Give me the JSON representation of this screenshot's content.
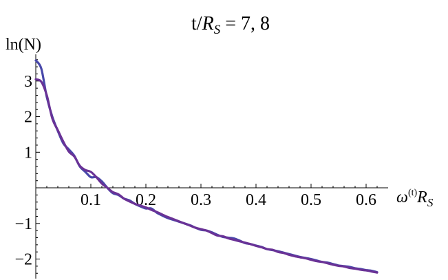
{
  "chart_data": {
    "type": "line",
    "title": {
      "prefix": "t/",
      "var": "R",
      "sub": "S",
      "suffix": " = 7, 8"
    },
    "ylabel": "ln(N)",
    "xlabel": {
      "var": "ω",
      "sup": "(t)",
      "var2": "R",
      "sub": "S"
    },
    "xlim": [
      0,
      0.64
    ],
    "ylim": [
      -2.55,
      3.75
    ],
    "x_ticks": [
      {
        "value": 0.1,
        "label": "0.1"
      },
      {
        "value": 0.2,
        "label": "0.2"
      },
      {
        "value": 0.3,
        "label": "0.3"
      },
      {
        "value": 0.4,
        "label": "0.4"
      },
      {
        "value": 0.5,
        "label": "0.5"
      },
      {
        "value": 0.6,
        "label": "0.6"
      }
    ],
    "y_ticks": [
      {
        "value": -2,
        "label": "−2"
      },
      {
        "value": -1,
        "label": "−1"
      },
      {
        "value": 1,
        "label": "1"
      },
      {
        "value": 2,
        "label": "2"
      },
      {
        "value": 3,
        "label": "3"
      }
    ],
    "series": [
      {
        "color": "#4848aa",
        "x": [
          0.0,
          0.01,
          0.02,
          0.03,
          0.04,
          0.05,
          0.06,
          0.07,
          0.08,
          0.09,
          0.1,
          0.11,
          0.12,
          0.13,
          0.14,
          0.15,
          0.16,
          0.17,
          0.18,
          0.19,
          0.2,
          0.21,
          0.22,
          0.23,
          0.24,
          0.25,
          0.26,
          0.27,
          0.28,
          0.29,
          0.3,
          0.31,
          0.32,
          0.33,
          0.34,
          0.35,
          0.36,
          0.37,
          0.38,
          0.39,
          0.4,
          0.41,
          0.42,
          0.43,
          0.44,
          0.45,
          0.46,
          0.47,
          0.48,
          0.49,
          0.5,
          0.51,
          0.52,
          0.53,
          0.54,
          0.55,
          0.56,
          0.57,
          0.58,
          0.59,
          0.6,
          0.61,
          0.62
        ],
        "y": [
          3.58,
          3.35,
          2.55,
          2.0,
          1.6,
          1.25,
          1.08,
          0.9,
          0.6,
          0.45,
          0.3,
          0.3,
          0.18,
          0.0,
          -0.15,
          -0.2,
          -0.3,
          -0.35,
          -0.45,
          -0.52,
          -0.58,
          -0.58,
          -0.7,
          -0.78,
          -0.85,
          -0.9,
          -0.95,
          -1.0,
          -1.05,
          -1.12,
          -1.18,
          -1.2,
          -1.25,
          -1.32,
          -1.38,
          -1.4,
          -1.42,
          -1.48,
          -1.55,
          -1.58,
          -1.62,
          -1.66,
          -1.72,
          -1.75,
          -1.78,
          -1.82,
          -1.86,
          -1.9,
          -1.94,
          -1.97,
          -2.0,
          -2.04,
          -2.08,
          -2.1,
          -2.14,
          -2.18,
          -2.2,
          -2.22,
          -2.26,
          -2.28,
          -2.31,
          -2.33,
          -2.37
        ]
      },
      {
        "color": "#6a3296",
        "x": [
          0.0,
          0.01,
          0.02,
          0.03,
          0.04,
          0.05,
          0.06,
          0.07,
          0.08,
          0.09,
          0.1,
          0.11,
          0.12,
          0.13,
          0.14,
          0.15,
          0.16,
          0.17,
          0.18,
          0.19,
          0.2,
          0.21,
          0.22,
          0.23,
          0.24,
          0.25,
          0.26,
          0.27,
          0.28,
          0.29,
          0.3,
          0.31,
          0.32,
          0.33,
          0.34,
          0.35,
          0.36,
          0.37,
          0.38,
          0.39,
          0.4,
          0.41,
          0.42,
          0.43,
          0.44,
          0.45,
          0.46,
          0.47,
          0.48,
          0.49,
          0.5,
          0.51,
          0.52,
          0.53,
          0.54,
          0.55,
          0.56,
          0.57,
          0.58,
          0.59,
          0.6,
          0.61,
          0.62
        ],
        "y": [
          3.05,
          2.98,
          2.6,
          1.95,
          1.62,
          1.3,
          1.02,
          0.88,
          0.62,
          0.5,
          0.45,
          0.3,
          0.12,
          0.0,
          -0.12,
          -0.18,
          -0.3,
          -0.38,
          -0.45,
          -0.5,
          -0.55,
          -0.62,
          -0.68,
          -0.75,
          -0.82,
          -0.88,
          -0.94,
          -1.0,
          -1.06,
          -1.12,
          -1.16,
          -1.2,
          -1.27,
          -1.34,
          -1.36,
          -1.42,
          -1.46,
          -1.5,
          -1.54,
          -1.58,
          -1.63,
          -1.67,
          -1.72,
          -1.74,
          -1.8,
          -1.83,
          -1.88,
          -1.92,
          -1.95,
          -1.98,
          -2.02,
          -2.06,
          -2.08,
          -2.12,
          -2.16,
          -2.19,
          -2.21,
          -2.25,
          -2.27,
          -2.3,
          -2.32,
          -2.35,
          -2.38
        ]
      }
    ]
  }
}
